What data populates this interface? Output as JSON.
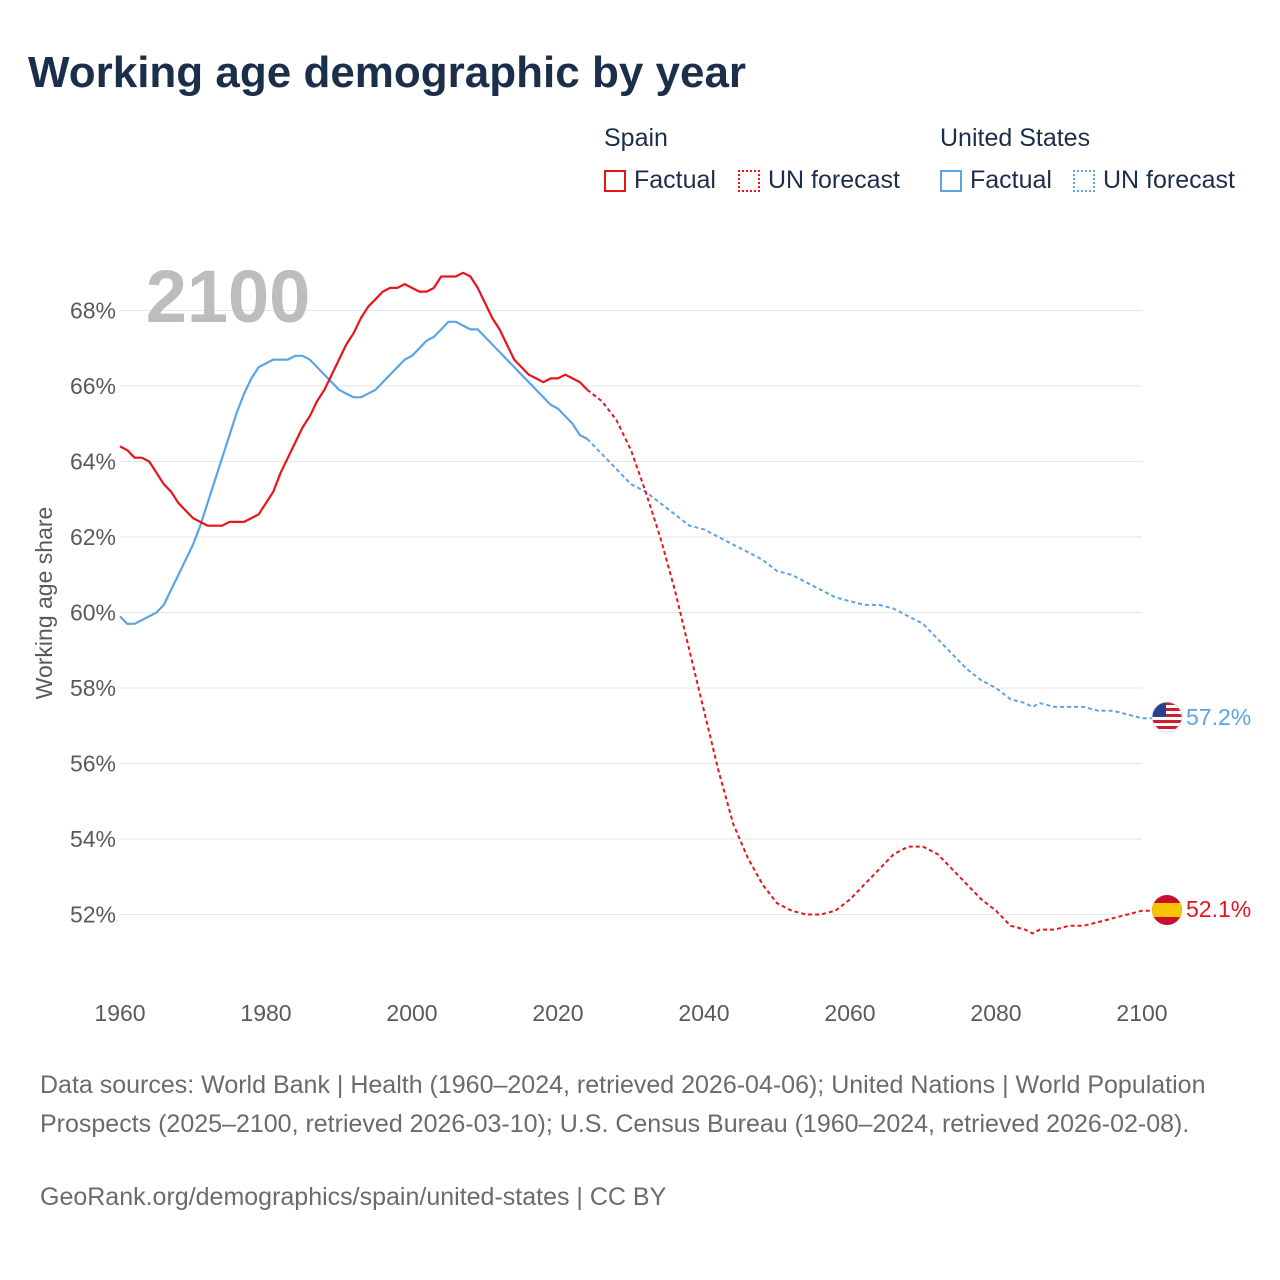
{
  "title": "Working age demographic by year",
  "legend": {
    "groups": [
      {
        "name": "Spain",
        "color": "#e8141b",
        "items": [
          {
            "label": "Factual",
            "style": "solid"
          },
          {
            "label": "UN forecast",
            "style": "dotted"
          }
        ]
      },
      {
        "name": "United States",
        "color": "#5ba4e5",
        "items": [
          {
            "label": "Factual",
            "style": "solid"
          },
          {
            "label": "UN forecast",
            "style": "dotted"
          }
        ]
      }
    ]
  },
  "footer": {
    "sources": "Data sources: World Bank | Health (1960–2024, retrieved 2026-04-06); United Nations | World Population Prospects (2025–2100, retrieved 2026-03-10); U.S. Census Bureau (1960–2024, retrieved 2026-02-08).",
    "credit": "GeoRank.org/demographics/spain/united-states | CC BY"
  },
  "chart_data": {
    "type": "line",
    "title": "Working age demographic by year",
    "xlabel": "",
    "ylabel": "Working age share",
    "year_label": "2100",
    "xlim": [
      1960,
      2100
    ],
    "ylim": [
      50.2,
      70
    ],
    "x_ticks": [
      1960,
      1980,
      2000,
      2020,
      2040,
      2060,
      2080,
      2100
    ],
    "y_ticks": [
      52,
      54,
      56,
      58,
      60,
      62,
      64,
      66,
      68
    ],
    "y_tick_labels": [
      "52%",
      "54%",
      "56%",
      "58%",
      "60%",
      "62%",
      "64%",
      "66%",
      "68%"
    ],
    "grid": true,
    "series": [
      {
        "name": "Spain",
        "color": "#e8141b",
        "end_label": "52.1%",
        "flag": "spain-flag",
        "factual": {
          "x": [
            1960,
            1961,
            1962,
            1963,
            1964,
            1965,
            1966,
            1967,
            1968,
            1969,
            1970,
            1971,
            1972,
            1973,
            1974,
            1975,
            1976,
            1977,
            1978,
            1979,
            1980,
            1981,
            1982,
            1983,
            1984,
            1985,
            1986,
            1987,
            1988,
            1989,
            1990,
            1991,
            1992,
            1993,
            1994,
            1995,
            1996,
            1997,
            1998,
            1999,
            2000,
            2001,
            2002,
            2003,
            2004,
            2005,
            2006,
            2007,
            2008,
            2009,
            2010,
            2011,
            2012,
            2013,
            2014,
            2015,
            2016,
            2017,
            2018,
            2019,
            2020,
            2021,
            2022,
            2023,
            2024
          ],
          "y": [
            64.4,
            64.3,
            64.1,
            64.1,
            64.0,
            63.7,
            63.4,
            63.2,
            62.9,
            62.7,
            62.5,
            62.4,
            62.3,
            62.3,
            62.3,
            62.4,
            62.4,
            62.4,
            62.5,
            62.6,
            62.9,
            63.2,
            63.7,
            64.1,
            64.5,
            64.9,
            65.2,
            65.6,
            65.9,
            66.3,
            66.7,
            67.1,
            67.4,
            67.8,
            68.1,
            68.3,
            68.5,
            68.6,
            68.6,
            68.7,
            68.6,
            68.5,
            68.5,
            68.6,
            68.9,
            68.9,
            68.9,
            69.0,
            68.9,
            68.6,
            68.2,
            67.8,
            67.5,
            67.1,
            66.7,
            66.5,
            66.3,
            66.2,
            66.1,
            66.2,
            66.2,
            66.3,
            66.2,
            66.1,
            65.9
          ]
        },
        "forecast": {
          "x": [
            2024,
            2026,
            2028,
            2030,
            2032,
            2034,
            2036,
            2038,
            2040,
            2042,
            2044,
            2046,
            2048,
            2050,
            2052,
            2054,
            2056,
            2058,
            2060,
            2062,
            2064,
            2066,
            2068,
            2070,
            2072,
            2074,
            2076,
            2078,
            2080,
            2082,
            2084,
            2085,
            2086,
            2088,
            2090,
            2092,
            2094,
            2096,
            2098,
            2100,
            2103
          ],
          "y": [
            65.9,
            65.6,
            65.1,
            64.3,
            63.2,
            62.0,
            60.6,
            59.0,
            57.4,
            55.8,
            54.4,
            53.5,
            52.8,
            52.3,
            52.1,
            52.0,
            52.0,
            52.1,
            52.4,
            52.8,
            53.2,
            53.6,
            53.8,
            53.8,
            53.6,
            53.2,
            52.8,
            52.4,
            52.1,
            51.7,
            51.6,
            51.5,
            51.6,
            51.6,
            51.7,
            51.7,
            51.8,
            51.9,
            52.0,
            52.1,
            52.1
          ]
        }
      },
      {
        "name": "United States",
        "color": "#5ba4e5",
        "end_label": "57.2%",
        "flag": "us-flag",
        "factual": {
          "x": [
            1960,
            1961,
            1962,
            1963,
            1964,
            1965,
            1966,
            1967,
            1968,
            1969,
            1970,
            1971,
            1972,
            1973,
            1974,
            1975,
            1976,
            1977,
            1978,
            1979,
            1980,
            1981,
            1982,
            1983,
            1984,
            1985,
            1986,
            1987,
            1988,
            1989,
            1990,
            1991,
            1992,
            1993,
            1994,
            1995,
            1996,
            1997,
            1998,
            1999,
            2000,
            2001,
            2002,
            2003,
            2004,
            2005,
            2006,
            2007,
            2008,
            2009,
            2010,
            2011,
            2012,
            2013,
            2014,
            2015,
            2016,
            2017,
            2018,
            2019,
            2020,
            2021,
            2022,
            2023,
            2024
          ],
          "y": [
            59.9,
            59.7,
            59.7,
            59.8,
            59.9,
            60.0,
            60.2,
            60.6,
            61.0,
            61.4,
            61.8,
            62.3,
            62.9,
            63.5,
            64.1,
            64.7,
            65.3,
            65.8,
            66.2,
            66.5,
            66.6,
            66.7,
            66.7,
            66.7,
            66.8,
            66.8,
            66.7,
            66.5,
            66.3,
            66.1,
            65.9,
            65.8,
            65.7,
            65.7,
            65.8,
            65.9,
            66.1,
            66.3,
            66.5,
            66.7,
            66.8,
            67.0,
            67.2,
            67.3,
            67.5,
            67.7,
            67.7,
            67.6,
            67.5,
            67.5,
            67.3,
            67.1,
            66.9,
            66.7,
            66.5,
            66.3,
            66.1,
            65.9,
            65.7,
            65.5,
            65.4,
            65.2,
            65.0,
            64.7,
            64.6
          ]
        },
        "forecast": {
          "x": [
            2024,
            2026,
            2028,
            2030,
            2032,
            2034,
            2036,
            2038,
            2040,
            2042,
            2044,
            2046,
            2048,
            2050,
            2052,
            2054,
            2056,
            2058,
            2060,
            2062,
            2064,
            2066,
            2068,
            2070,
            2072,
            2074,
            2076,
            2078,
            2080,
            2082,
            2084,
            2085,
            2086,
            2088,
            2090,
            2092,
            2094,
            2096,
            2098,
            2100,
            2103
          ],
          "y": [
            64.6,
            64.2,
            63.8,
            63.4,
            63.2,
            62.9,
            62.6,
            62.3,
            62.2,
            62.0,
            61.8,
            61.6,
            61.4,
            61.1,
            61.0,
            60.8,
            60.6,
            60.4,
            60.3,
            60.2,
            60.2,
            60.1,
            59.9,
            59.7,
            59.3,
            58.9,
            58.5,
            58.2,
            58.0,
            57.7,
            57.6,
            57.5,
            57.6,
            57.5,
            57.5,
            57.5,
            57.4,
            57.4,
            57.3,
            57.2,
            57.2
          ]
        }
      }
    ]
  }
}
